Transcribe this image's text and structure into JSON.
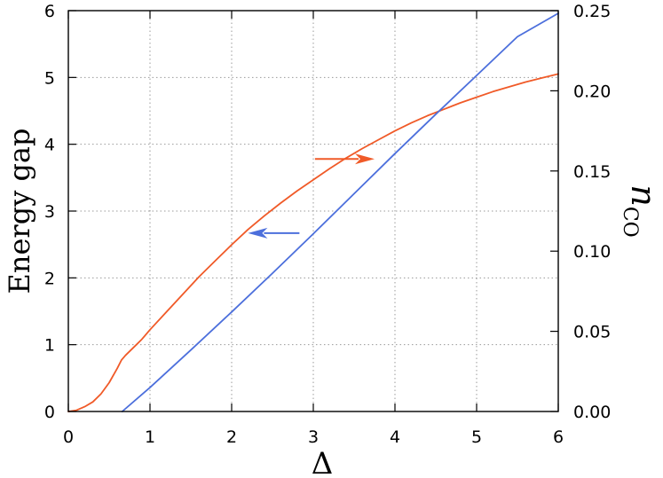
{
  "chart_data": {
    "type": "line",
    "title": "",
    "xlabel": "Δ",
    "ylabel_left": "Energy gap",
    "ylabel_right": {
      "base": "n",
      "subscript": "CO"
    },
    "xlim": [
      0,
      6
    ],
    "ylim_left": [
      0,
      6
    ],
    "ylim_right": [
      0,
      0.25
    ],
    "x_ticks": [
      "0",
      "1",
      "2",
      "3",
      "4",
      "5",
      "6"
    ],
    "y_ticks_left": [
      "0",
      "1",
      "2",
      "3",
      "4",
      "5",
      "6"
    ],
    "y_ticks_right": [
      "0.00",
      "0.05",
      "0.10",
      "0.15",
      "0.20",
      "0.25"
    ],
    "grid": true,
    "series": [
      {
        "color": "#f05a28",
        "axis": "right",
        "x": [
          0.0,
          0.1,
          0.2,
          0.3,
          0.4,
          0.5,
          0.6,
          0.65,
          0.7,
          0.8,
          0.9,
          1.0,
          1.2,
          1.4,
          1.6,
          1.8,
          2.0,
          2.2,
          2.4,
          2.6,
          2.8,
          3.0,
          3.2,
          3.4,
          3.6,
          3.8,
          4.0,
          4.2,
          4.4,
          4.6,
          4.8,
          5.0,
          5.2,
          5.4,
          5.6,
          5.8,
          6.0
        ],
        "y": [
          0.0,
          0.0008,
          0.003,
          0.006,
          0.011,
          0.018,
          0.027,
          0.032,
          0.035,
          0.04,
          0.045,
          0.051,
          0.062,
          0.073,
          0.084,
          0.094,
          0.104,
          0.1135,
          0.122,
          0.13,
          0.1375,
          0.1445,
          0.1515,
          0.158,
          0.164,
          0.1695,
          0.175,
          0.18,
          0.1845,
          0.1885,
          0.1925,
          0.196,
          0.1995,
          0.2025,
          0.2055,
          0.208,
          0.2105
        ]
      },
      {
        "color": "#4c6fdc",
        "axis": "left",
        "x": [
          0.66,
          1.0,
          1.5,
          2.0,
          2.5,
          3.0,
          3.5,
          4.0,
          4.5,
          5.0,
          5.5,
          6.0
        ],
        "y": [
          0.0,
          0.36,
          0.92,
          1.49,
          2.07,
          2.66,
          3.26,
          3.86,
          4.45,
          5.03,
          5.61,
          5.96
        ]
      }
    ],
    "annotations": [
      {
        "type": "arrow",
        "color": "#f05a28",
        "direction": "right",
        "x_from": 3.02,
        "x_to": 3.75,
        "y_left": 3.78
      },
      {
        "type": "arrow",
        "color": "#4c6fdc",
        "direction": "left",
        "x_from": 2.83,
        "x_to": 2.2,
        "y_left": 2.67
      }
    ]
  }
}
